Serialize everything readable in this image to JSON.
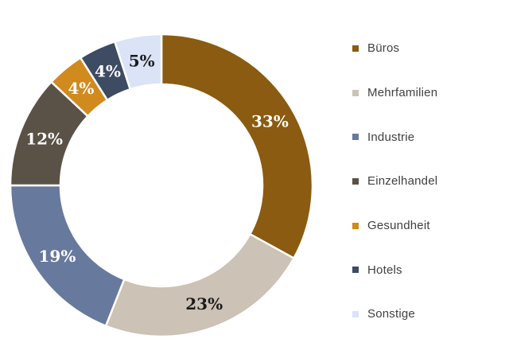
{
  "figure": {
    "background": "#FFFFFF"
  },
  "chart_data": {
    "type": "pie",
    "subtype": "donut",
    "title": "",
    "legend_position": "right",
    "start_angle_deg": 0,
    "direction": "clockwise",
    "donut_hole_ratio": 0.67,
    "gap_color": "#FFFFFF",
    "categories": [
      "Büros",
      "Mehrfamilien",
      "Industrie",
      "Einzelhandel",
      "Gesundheit",
      "Hotels",
      "Sonstige"
    ],
    "values": [
      33,
      23,
      19,
      12,
      4,
      4,
      5
    ],
    "segments": [
      {
        "label": "Büros",
        "value": 33,
        "display": "33%",
        "color": "#8A5B10",
        "label_color": "#FFFFFF"
      },
      {
        "label": "Mehrfamilien",
        "value": 23,
        "display": "23%",
        "color": "#CCC2B5",
        "label_color": "#1A1A1A"
      },
      {
        "label": "Industrie",
        "value": 19,
        "display": "19%",
        "color": "#68799E",
        "label_color": "#FFFFFF"
      },
      {
        "label": "Einzelhandel",
        "value": 12,
        "display": "12%",
        "color": "#5A5147",
        "label_color": "#FFFFFF"
      },
      {
        "label": "Gesundheit",
        "value": 4,
        "display": "4%",
        "color": "#D18A1E",
        "label_color": "#FFFFFF"
      },
      {
        "label": "Hotels",
        "value": 4,
        "display": "4%",
        "color": "#3D4B63",
        "label_color": "#FFFFFF"
      },
      {
        "label": "Sonstige",
        "value": 5,
        "display": "5%",
        "color": "#DAE4F6",
        "label_color": "#1A1A1A"
      }
    ]
  }
}
